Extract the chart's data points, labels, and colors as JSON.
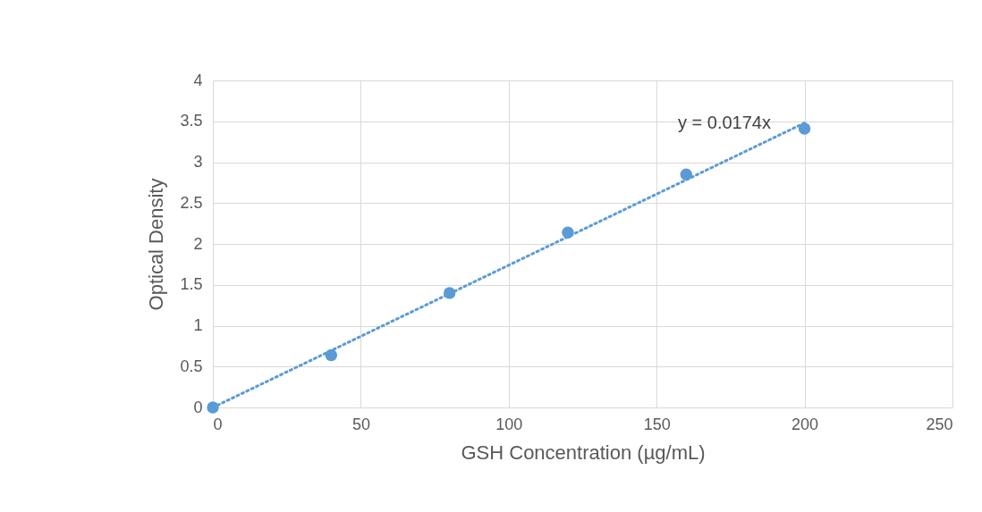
{
  "chart_data": {
    "type": "scatter",
    "xlabel": "GSH Concentration (µg/mL)",
    "ylabel": "Optical Density",
    "xlim": [
      0,
      250
    ],
    "xticks": [
      0,
      50,
      100,
      150,
      200,
      250
    ],
    "ylim": [
      0,
      4
    ],
    "yticks": [
      0,
      0.5,
      1,
      1.5,
      2,
      2.5,
      3,
      3.5,
      4
    ],
    "grid": true,
    "series": [
      {
        "marker": "circle",
        "color": "#5b9bd5",
        "x": [
          0,
          40,
          80,
          120,
          160,
          200
        ],
        "values": [
          0,
          0.64,
          1.4,
          2.14,
          2.85,
          3.41
        ]
      },
      {
        "type": "line",
        "color": "#5b9bd5",
        "line_style": "dotted",
        "x": [
          0,
          200
        ],
        "values": [
          0,
          3.48
        ]
      }
    ],
    "annotations": [
      "y = 0.0174x"
    ]
  }
}
